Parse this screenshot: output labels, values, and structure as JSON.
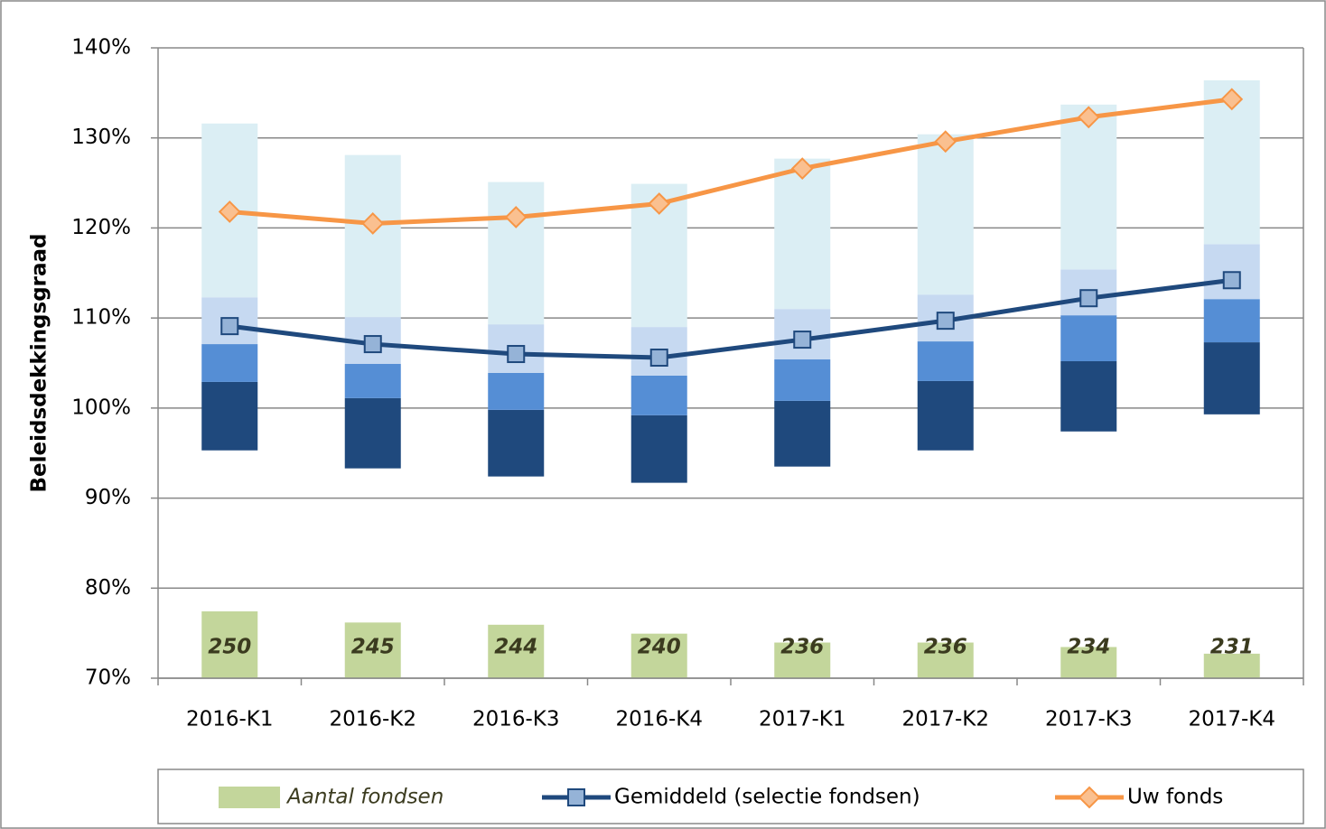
{
  "chart_data": {
    "type": "combo",
    "y_label": "Beleidsdekkingsgraad",
    "categories": [
      "2016-K1",
      "2016-K2",
      "2016-K3",
      "2016-K4",
      "2017-K1",
      "2017-K2",
      "2017-K3",
      "2017-K4"
    ],
    "ylim": [
      70,
      140
    ],
    "yticks": [
      {
        "value": 70,
        "label": "70%"
      },
      {
        "value": 80,
        "label": "80%"
      },
      {
        "value": 90,
        "label": "90%"
      },
      {
        "value": 100,
        "label": "100%"
      },
      {
        "value": 110,
        "label": "110%"
      },
      {
        "value": 120,
        "label": "120%"
      },
      {
        "value": 130,
        "label": "130%"
      },
      {
        "value": 140,
        "label": "140%"
      }
    ],
    "y2lim": [
      220,
      503
    ],
    "grid": true,
    "legend": "bottom",
    "bands": {
      "low": [
        95.3,
        93.3,
        92.4,
        91.7,
        93.5,
        95.3,
        97.4,
        99.3
      ],
      "segments": [
        {
          "color": "#1f497d",
          "values": [
            7.6,
            7.8,
            7.4,
            7.5,
            7.3,
            7.7,
            7.8,
            8.0
          ]
        },
        {
          "color": "#558ed5",
          "values": [
            4.2,
            3.8,
            4.1,
            4.4,
            4.6,
            4.4,
            5.1,
            4.8
          ]
        },
        {
          "color": "#c6d9f1",
          "values": [
            5.2,
            5.2,
            5.4,
            5.4,
            5.6,
            5.2,
            5.1,
            6.1
          ]
        },
        {
          "color": "#dbeef4",
          "values": [
            19.3,
            18.0,
            15.8,
            15.9,
            16.7,
            17.8,
            18.3,
            18.2
          ]
        }
      ]
    },
    "series": [
      {
        "name": "Aantal fondsen",
        "type": "bar",
        "axis": "y2",
        "color": "#c3d69b",
        "label_color": "#3b3b1f",
        "values": [
          250,
          245,
          244,
          240,
          236,
          236,
          234,
          231
        ]
      },
      {
        "name": "Gemiddeld (selectie fondsen)",
        "type": "line",
        "marker": "square",
        "color": "#1f497d",
        "marker_color": "#95b3d7",
        "values": [
          109.1,
          107.1,
          106.0,
          105.6,
          107.6,
          109.7,
          112.2,
          114.2
        ]
      },
      {
        "name": "Uw fonds",
        "type": "line",
        "marker": "diamond",
        "color": "#f79646",
        "marker_color": "#fac090",
        "values": [
          121.8,
          120.5,
          121.2,
          122.7,
          126.6,
          129.6,
          132.3,
          134.3
        ]
      }
    ]
  }
}
